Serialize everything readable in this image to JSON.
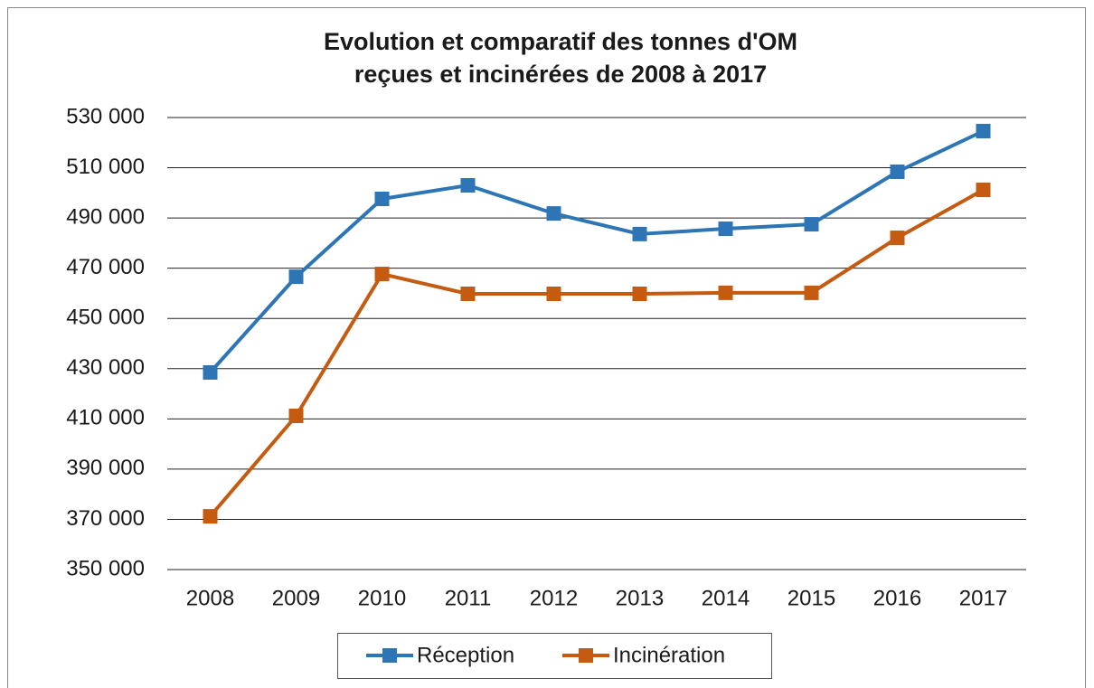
{
  "chart_data": {
    "type": "line",
    "title": [
      "Evolution et comparatif des tonnes d'OM",
      "reçues et incinérées de 2008 à 2017"
    ],
    "categories": [
      "2008",
      "2009",
      "2010",
      "2011",
      "2012",
      "2013",
      "2014",
      "2015",
      "2016",
      "2017"
    ],
    "series": [
      {
        "name": "Réception",
        "color": "#2e75b6",
        "values": [
          428500,
          466600,
          497600,
          503000,
          491800,
          483600,
          485700,
          487500,
          508400,
          524600
        ]
      },
      {
        "name": "Incinération",
        "color": "#c55a11",
        "values": [
          371200,
          411200,
          467700,
          459800,
          459800,
          459800,
          460200,
          460200,
          482100,
          501200
        ]
      }
    ],
    "ylim": [
      350000,
      530000
    ],
    "yticks": [
      {
        "value": 350000,
        "label": "350 000"
      },
      {
        "value": 370000,
        "label": "370 000"
      },
      {
        "value": 390000,
        "label": "390 000"
      },
      {
        "value": 410000,
        "label": "410 000"
      },
      {
        "value": 430000,
        "label": "430 000"
      },
      {
        "value": 450000,
        "label": "450 000"
      },
      {
        "value": 470000,
        "label": "470 000"
      },
      {
        "value": 490000,
        "label": "490 000"
      },
      {
        "value": 510000,
        "label": "510 000"
      },
      {
        "value": 530000,
        "label": "530 000"
      }
    ],
    "grid": true,
    "legend": "bottom"
  }
}
